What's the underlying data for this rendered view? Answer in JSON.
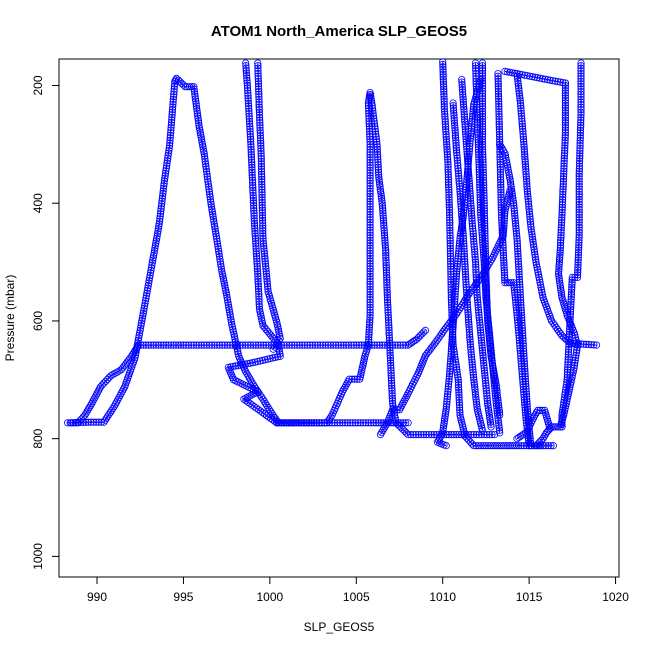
{
  "chart_data": {
    "type": "scatter",
    "title": "ATOM1 North_America SLP_GEOS5",
    "xlabel": "SLP_GEOS5",
    "ylabel": "Pressure (mbar)",
    "xlim": [
      987.8,
      1020.2
    ],
    "ylim": [
      1035,
      155
    ],
    "y_axis_inverted": true,
    "x_ticks": [
      990,
      995,
      1000,
      1005,
      1010,
      1015,
      1020
    ],
    "y_ticks": [
      200,
      400,
      600,
      800,
      1000
    ],
    "point_style": "open-circle",
    "line_style": "connected",
    "color": "#0000ff",
    "series": [
      {
        "profiles": [
          [
            [
              988.3,
              773
            ],
            [
              988.9,
              773
            ],
            [
              989.3,
              760
            ],
            [
              989.7,
              740
            ],
            [
              990.2,
              712
            ],
            [
              990.8,
              693
            ],
            [
              991.4,
              683
            ],
            [
              992.0,
              660
            ],
            [
              992.4,
              641
            ],
            [
              995.0,
              641
            ],
            [
              1008.0,
              641
            ],
            [
              1008.5,
              631
            ],
            [
              1009.0,
              616
            ]
          ],
          [
            [
              988.5,
              773
            ],
            [
              989.5,
              772
            ],
            [
              990.4,
              772
            ],
            [
              991.0,
              745
            ],
            [
              991.6,
              712
            ],
            [
              992.2,
              662
            ],
            [
              992.7,
              583
            ],
            [
              993.2,
              501
            ],
            [
              993.6,
              435
            ],
            [
              993.9,
              362
            ],
            [
              994.2,
              302
            ],
            [
              994.5,
              193
            ],
            [
              994.6,
              188
            ],
            [
              995.1,
              202
            ],
            [
              995.6,
              202
            ],
            [
              995.9,
              268
            ],
            [
              996.2,
              316
            ],
            [
              996.6,
              402
            ],
            [
              996.9,
              456
            ],
            [
              997.2,
              512
            ],
            [
              997.5,
              556
            ],
            [
              997.8,
              606
            ],
            [
              998.2,
              660
            ],
            [
              998.6,
              686
            ],
            [
              999.1,
              711
            ],
            [
              999.6,
              733
            ],
            [
              1000.2,
              761
            ],
            [
              1000.5,
              773
            ],
            [
              1001.5,
              773
            ],
            [
              1003.0,
              773
            ],
            [
              1006.0,
              773
            ],
            [
              1008.0,
              773
            ]
          ],
          [
            [
              998.6,
              162
            ],
            [
              998.7,
              200
            ],
            [
              998.9,
              300
            ],
            [
              999.1,
              430
            ],
            [
              999.3,
              520
            ],
            [
              999.4,
              580
            ],
            [
              999.6,
              608
            ],
            [
              1000.5,
              640
            ],
            [
              1000.6,
              660
            ],
            [
              999.0,
              671
            ],
            [
              997.6,
              679
            ],
            [
              997.9,
              700
            ],
            [
              999.3,
              720
            ],
            [
              998.5,
              733
            ],
            [
              1000.4,
              773
            ]
          ],
          [
            [
              999.3,
              162
            ],
            [
              999.4,
              250
            ],
            [
              999.5,
              320
            ],
            [
              999.6,
              460
            ],
            [
              999.9,
              550
            ],
            [
              1000.4,
              602
            ],
            [
              1000.6,
              630
            ],
            [
              1000.2,
              648
            ]
          ],
          [
            [
              1000.4,
              773
            ],
            [
              1003.3,
              773
            ],
            [
              1003.6,
              760
            ],
            [
              1003.9,
              740
            ],
            [
              1004.2,
              720
            ],
            [
              1004.6,
              699
            ],
            [
              1005.2,
              699
            ],
            [
              1005.5,
              660
            ],
            [
              1005.7,
              640
            ],
            [
              1005.8,
              590
            ],
            [
              1005.8,
              520
            ],
            [
              1005.8,
              450
            ],
            [
              1005.8,
              300
            ],
            [
              1005.7,
              230
            ],
            [
              1005.8,
              212
            ],
            [
              1005.9,
              230
            ],
            [
              1006.2,
              300
            ],
            [
              1006.3,
              356
            ],
            [
              1006.5,
              400
            ],
            [
              1006.7,
              480
            ],
            [
              1006.8,
              560
            ],
            [
              1006.9,
              620
            ],
            [
              1007.0,
              680
            ],
            [
              1007.1,
              740
            ],
            [
              1007.3,
              773
            ],
            [
              1008.0,
              793
            ],
            [
              1009.5,
              793
            ],
            [
              1011.5,
              793
            ],
            [
              1013.0,
              793
            ]
          ],
          [
            [
              1006.4,
              793
            ],
            [
              1006.8,
              773
            ],
            [
              1007.1,
              751
            ],
            [
              1007.5,
              751
            ],
            [
              1008.0,
              723
            ],
            [
              1008.6,
              688
            ],
            [
              1009.0,
              659
            ],
            [
              1009.6,
              636
            ],
            [
              1010.1,
              615
            ],
            [
              1010.8,
              588
            ],
            [
              1011.5,
              555
            ],
            [
              1012.3,
              522
            ],
            [
              1012.9,
              492
            ],
            [
              1013.5,
              455
            ],
            [
              1013.6,
              413
            ],
            [
              1013.9,
              378
            ]
          ],
          [
            [
              1010.2,
              812
            ],
            [
              1009.7,
              806
            ],
            [
              1010.0,
              790
            ],
            [
              1010.2,
              750
            ],
            [
              1010.4,
              690
            ],
            [
              1010.6,
              610
            ],
            [
              1010.8,
              520
            ],
            [
              1011.0,
              460
            ],
            [
              1011.2,
              420
            ],
            [
              1011.4,
              360
            ],
            [
              1011.6,
              290
            ],
            [
              1011.8,
              232
            ],
            [
              1012.2,
              190
            ]
          ],
          [
            [
              1010.0,
              160
            ],
            [
              1010.1,
              240
            ],
            [
              1010.3,
              330
            ],
            [
              1010.4,
              420
            ],
            [
              1010.5,
              560
            ],
            [
              1010.6,
              640
            ],
            [
              1010.9,
              700
            ],
            [
              1011.0,
              760
            ],
            [
              1011.3,
              796
            ],
            [
              1011.8,
              812
            ],
            [
              1012.9,
              812
            ],
            [
              1013.4,
              812
            ],
            [
              1013.9,
              812
            ],
            [
              1014.4,
              812
            ],
            [
              1015.0,
              812
            ],
            [
              1015.6,
              812
            ]
          ],
          [
            [
              1010.6,
              230
            ],
            [
              1010.8,
              310
            ],
            [
              1011.0,
              380
            ],
            [
              1011.2,
              460
            ],
            [
              1011.4,
              560
            ],
            [
              1011.6,
              640
            ],
            [
              1011.8,
              700
            ],
            [
              1012.0,
              750
            ],
            [
              1012.3,
              786
            ]
          ],
          [
            [
              1011.1,
              190
            ],
            [
              1011.3,
              270
            ],
            [
              1011.5,
              350
            ],
            [
              1011.7,
              430
            ],
            [
              1011.9,
              500
            ],
            [
              1012.0,
              560
            ],
            [
              1012.2,
              620
            ],
            [
              1012.4,
              680
            ],
            [
              1012.6,
              740
            ],
            [
              1012.8,
              780
            ]
          ],
          [
            [
              1011.9,
              162
            ],
            [
              1012.0,
              250
            ],
            [
              1012.1,
              330
            ],
            [
              1012.2,
              420
            ],
            [
              1012.4,
              500
            ],
            [
              1012.5,
              560
            ],
            [
              1012.7,
              620
            ],
            [
              1012.9,
              680
            ],
            [
              1013.1,
              740
            ],
            [
              1013.3,
              790
            ]
          ],
          [
            [
              1012.3,
              162
            ],
            [
              1012.3,
              300
            ],
            [
              1012.4,
              400
            ],
            [
              1012.5,
              520
            ],
            [
              1012.6,
              600
            ],
            [
              1012.8,
              660
            ],
            [
              1013.1,
              710
            ],
            [
              1013.3,
              760
            ]
          ],
          [
            [
              1013.2,
              180
            ],
            [
              1013.3,
              300
            ],
            [
              1013.4,
              420
            ],
            [
              1013.5,
              480
            ],
            [
              1013.6,
              535
            ],
            [
              1014.1,
              535
            ],
            [
              1014.2,
              560
            ],
            [
              1014.4,
              620
            ],
            [
              1014.6,
              690
            ],
            [
              1014.8,
              760
            ],
            [
              1015.0,
              812
            ]
          ],
          [
            [
              1013.3,
              300
            ],
            [
              1013.6,
              315
            ],
            [
              1013.9,
              360
            ],
            [
              1014.1,
              400
            ],
            [
              1014.3,
              460
            ],
            [
              1014.5,
              560
            ],
            [
              1014.7,
              660
            ],
            [
              1014.9,
              750
            ],
            [
              1015.1,
              812
            ]
          ],
          [
            [
              1013.6,
              176
            ],
            [
              1014.3,
              180
            ],
            [
              1017.1,
              196
            ]
          ],
          [
            [
              1014.3,
              180
            ],
            [
              1014.5,
              230
            ],
            [
              1014.7,
              300
            ],
            [
              1014.9,
              380
            ],
            [
              1015.1,
              440
            ],
            [
              1015.4,
              500
            ],
            [
              1015.8,
              560
            ],
            [
              1016.3,
              600
            ],
            [
              1016.9,
              625
            ],
            [
              1017.4,
              638
            ],
            [
              1018.9,
              641
            ]
          ],
          [
            [
              1017.1,
              196
            ],
            [
              1017.1,
              280
            ],
            [
              1017.0,
              350
            ],
            [
              1016.9,
              420
            ],
            [
              1016.8,
              480
            ],
            [
              1016.7,
              520
            ],
            [
              1016.9,
              560
            ],
            [
              1017.2,
              590
            ],
            [
              1017.6,
              620
            ],
            [
              1017.8,
              641
            ]
          ],
          [
            [
              1017.8,
              641
            ],
            [
              1017.6,
              680
            ],
            [
              1017.3,
              720
            ],
            [
              1017.0,
              760
            ],
            [
              1016.8,
              780
            ],
            [
              1016.3,
              780
            ],
            [
              1016.0,
              790
            ],
            [
              1015.8,
              800
            ],
            [
              1015.4,
              812
            ],
            [
              1016.4,
              812
            ]
          ],
          [
            [
              1018.0,
              162
            ],
            [
              1018.0,
              250
            ],
            [
              1017.9,
              350
            ],
            [
              1017.9,
              450
            ],
            [
              1017.8,
              526
            ],
            [
              1017.5,
              526
            ],
            [
              1017.4,
              580
            ],
            [
              1017.3,
              640
            ],
            [
              1017.2,
              700
            ],
            [
              1016.9,
              760
            ],
            [
              1016.9,
              780
            ]
          ],
          [
            [
              1015.0,
              780
            ],
            [
              1015.3,
              762
            ],
            [
              1015.5,
              752
            ],
            [
              1015.9,
              752
            ],
            [
              1016.2,
              782
            ]
          ],
          [
            [
              1014.3,
              800
            ],
            [
              1014.7,
              792
            ],
            [
              1014.9,
              788
            ]
          ]
        ]
      }
    ]
  }
}
